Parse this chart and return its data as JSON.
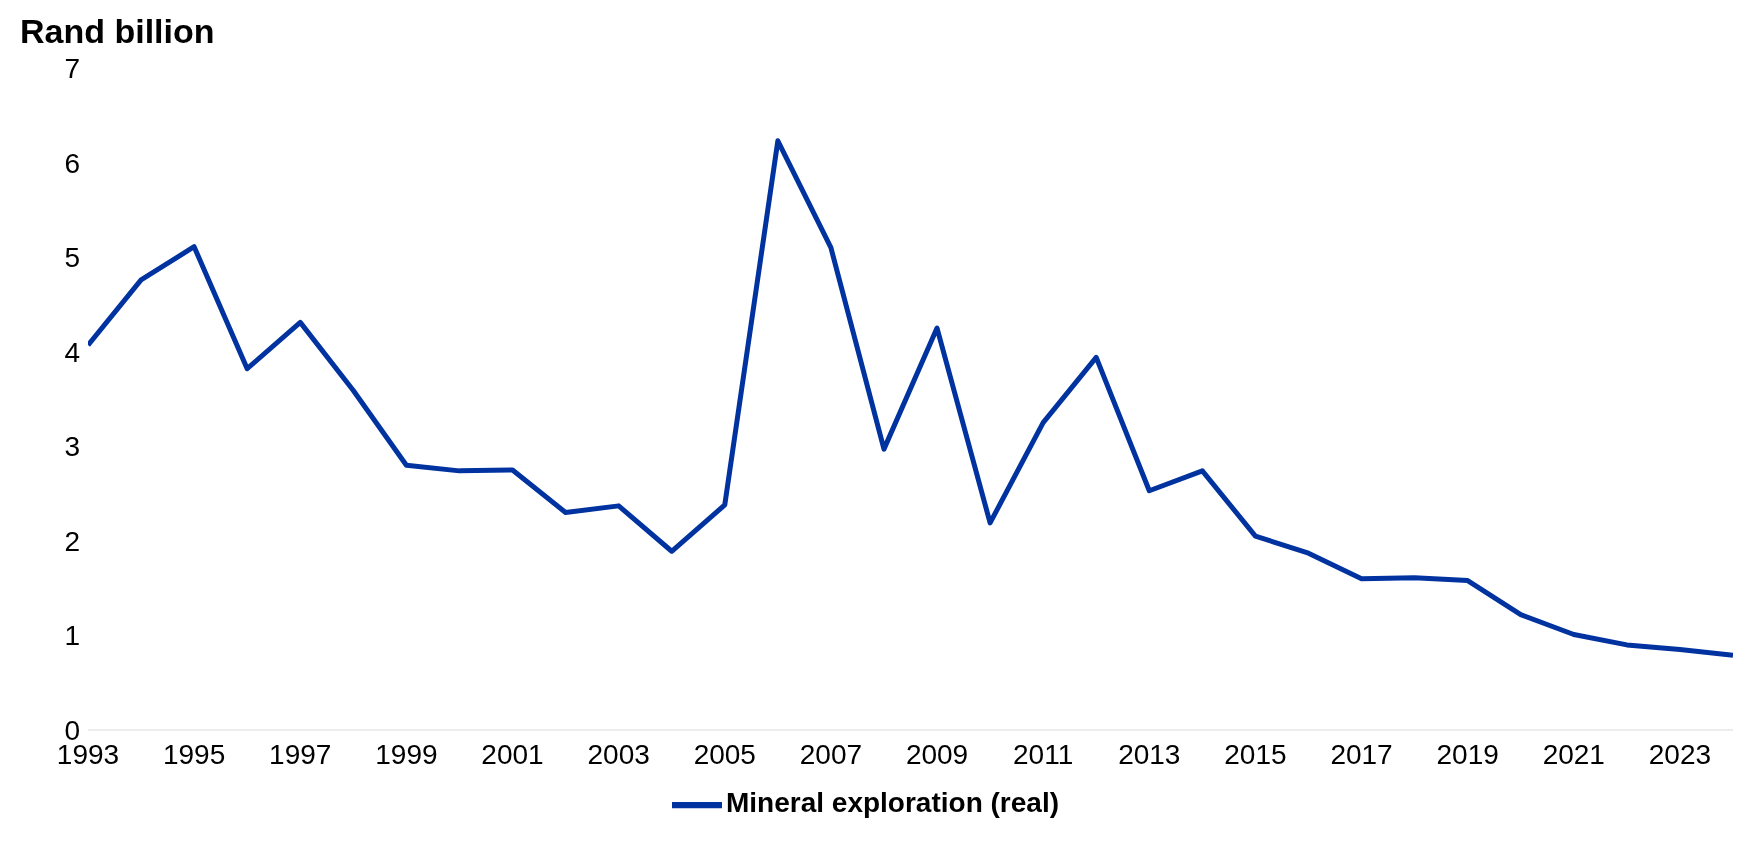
{
  "chart_data": {
    "type": "line",
    "ylabel": "Rand billion",
    "x": [
      1993,
      1994,
      1995,
      1996,
      1997,
      1998,
      1999,
      2000,
      2001,
      2002,
      2003,
      2004,
      2005,
      2006,
      2007,
      2008,
      2009,
      2010,
      2011,
      2012,
      2013,
      2014,
      2015,
      2016,
      2017,
      2018,
      2019,
      2020,
      2021,
      2022,
      2023,
      2024
    ],
    "series": [
      {
        "name": "Mineral exploration (real)",
        "color": "#0033a0",
        "values": [
          4.07,
          4.76,
          5.11,
          3.82,
          4.31,
          3.59,
          2.8,
          2.74,
          2.75,
          2.3,
          2.37,
          1.89,
          2.38,
          6.23,
          5.1,
          2.97,
          4.25,
          2.19,
          3.25,
          3.94,
          2.53,
          2.74,
          2.05,
          1.87,
          1.6,
          1.61,
          1.58,
          1.22,
          1.01,
          0.9,
          0.85,
          0.79
        ]
      }
    ],
    "xlim": [
      1993,
      2024
    ],
    "xticks": [
      1993,
      1995,
      1997,
      1999,
      2001,
      2003,
      2005,
      2007,
      2009,
      2011,
      2013,
      2015,
      2017,
      2019,
      2021,
      2023
    ],
    "ylim": [
      0,
      7
    ],
    "yticks": [
      0,
      1,
      2,
      3,
      4,
      5,
      6,
      7
    ],
    "grid": false,
    "legend": "bottom",
    "marker": "none",
    "line_style": "solid"
  }
}
